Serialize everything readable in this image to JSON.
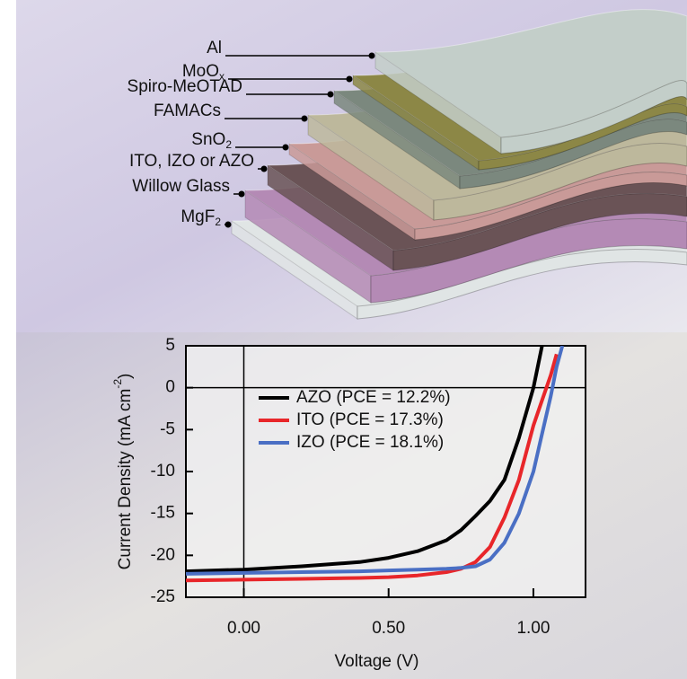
{
  "diagram": {
    "layers": [
      {
        "label": "Al",
        "color": "#c3cec9"
      },
      {
        "label": "MoO",
        "sub": "x",
        "color": "#8c8746"
      },
      {
        "label": "Spiro-MeOTAD",
        "color": "#7b887e"
      },
      {
        "label": "FAMACs",
        "color": "#bdb89c"
      },
      {
        "label": "SnO",
        "sub": "2",
        "color": "#c99a98"
      },
      {
        "label": "ITO, IZO or AZO",
        "color": "#6a5356"
      },
      {
        "label": "Willow Glass",
        "color": "#b48ab5"
      },
      {
        "label": "MgF",
        "sub": "2",
        "color": "#e0e5e5"
      }
    ]
  },
  "chart_data": {
    "type": "line",
    "x_label": "Voltage (V)",
    "y_label": {
      "text": "Current Density (mA cm",
      "sup": "-2",
      "end": ")"
    },
    "x": [
      -0.2,
      0,
      0.2,
      0.4,
      0.5,
      0.6,
      0.7,
      0.75,
      0.8,
      0.85,
      0.9,
      0.95,
      1.0,
      1.03,
      1.06,
      1.08,
      1.1
    ],
    "series": [
      {
        "name": "AZO (PCE = 12.2%)",
        "color": "#000000",
        "values": [
          -21.9,
          -21.7,
          -21.3,
          -20.8,
          -20.3,
          -19.5,
          -18.2,
          -17,
          -15.3,
          -13.5,
          -11,
          -6,
          0,
          5,
          null,
          null,
          null
        ]
      },
      {
        "name": "ITO (PCE = 17.3%)",
        "color": "#e8262a",
        "values": [
          -23,
          -22.9,
          -22.8,
          -22.7,
          -22.6,
          -22.4,
          -22,
          -21.6,
          -20.8,
          -19,
          -15.5,
          -11,
          -4.5,
          -1.5,
          1.5,
          4,
          null
        ]
      },
      {
        "name": "IZO (PCE = 18.1%)",
        "color": "#4a6fc4",
        "values": [
          -22.2,
          -22.1,
          -22,
          -21.9,
          -21.8,
          -21.7,
          -21.6,
          -21.5,
          -21.3,
          -20.5,
          -18.5,
          -15,
          -10,
          -5.5,
          -1,
          2.5,
          5
        ]
      }
    ],
    "xlim": [
      -0.2,
      1.18
    ],
    "ylim": [
      -25,
      5
    ],
    "xticks": [
      {
        "value": 0,
        "label": "0.00"
      },
      {
        "value": 0.5,
        "label": "0.50"
      },
      {
        "value": 1,
        "label": "1.00"
      }
    ],
    "yticks": [
      5,
      0,
      -5,
      -10,
      -15,
      -20,
      -25
    ],
    "legend": "upper-center"
  }
}
